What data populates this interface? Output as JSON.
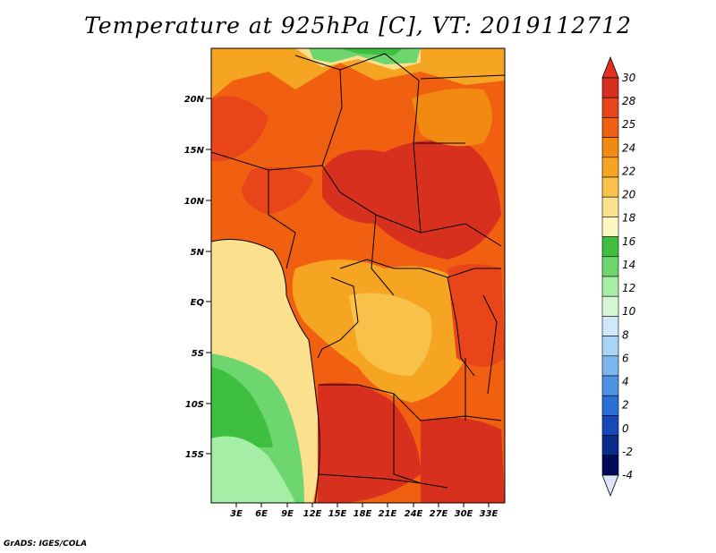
{
  "title": "Temperature at 925hPa [C], VT: 2019112712",
  "credit": "GrADS: IGES/COLA",
  "map": {
    "lat_ticks": [
      "20N",
      "15N",
      "10N",
      "5N",
      "EQ",
      "5S",
      "10S",
      "15S"
    ],
    "lon_ticks": [
      "3E",
      "6E",
      "9E",
      "12E",
      "15E",
      "18E",
      "21E",
      "24E",
      "27E",
      "30E",
      "33E"
    ]
  },
  "colorbar": {
    "labels": [
      "30",
      "28",
      "25",
      "24",
      "22",
      "20",
      "18",
      "16",
      "14",
      "12",
      "10",
      "8",
      "6",
      "4",
      "2",
      "0",
      "-2",
      "-4"
    ],
    "colors": [
      "#d7301f",
      "#e8461a",
      "#f06010",
      "#f28a12",
      "#f5a522",
      "#f8c24a",
      "#fbe08e",
      "#fff7c0",
      "#3fbf3f",
      "#6ed66e",
      "#a6eea6",
      "#d6f7d6",
      "#cfe9fb",
      "#a8d4f5",
      "#7bb6ee",
      "#4e94e4",
      "#2a6fd6",
      "#1748b8",
      "#0a2c8a",
      "#000a5a"
    ],
    "top_color": "#e03020",
    "bottom_color": "#dde6f8"
  }
}
